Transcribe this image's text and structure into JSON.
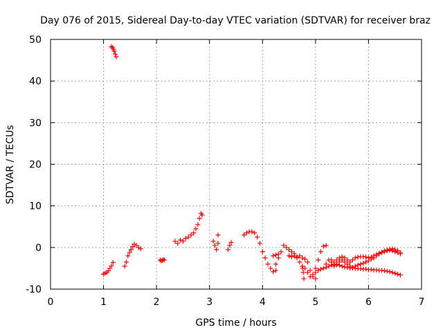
{
  "chart_data": {
    "type": "scatter",
    "title": "Day 076 of 2015, Sidereal Day-to-day VTEC variation (SDTVAR) for receiver braz",
    "xlabel": "GPS time / hours",
    "ylabel": "SDTVAR / TECUs",
    "xlim": [
      0,
      7
    ],
    "ylim": [
      -10,
      50
    ],
    "x_ticks": [
      0,
      1,
      2,
      3,
      4,
      5,
      6,
      7
    ],
    "y_ticks": [
      -10,
      0,
      10,
      20,
      30,
      40,
      50
    ],
    "grid": true,
    "marker": "+",
    "marker_color": "#ff0000",
    "series": [
      {
        "name": "s1",
        "x": [
          1.15,
          1.17,
          1.19,
          1.2,
          1.22,
          1.24
        ],
        "y": [
          48.3,
          48.0,
          47.6,
          47.2,
          46.5,
          45.8
        ]
      },
      {
        "name": "s2",
        "x": [
          1.0,
          1.03,
          1.06,
          1.09,
          1.12,
          1.15,
          1.18
        ],
        "y": [
          -6.4,
          -6.2,
          -6.0,
          -5.6,
          -5.0,
          -4.4,
          -3.6
        ]
      },
      {
        "name": "s3",
        "x": [
          1.4,
          1.43,
          1.46,
          1.49,
          1.52,
          1.55,
          1.58,
          1.62,
          1.66,
          1.7
        ],
        "y": [
          -4.5,
          -3.5,
          -2.0,
          -1.2,
          -0.5,
          0.2,
          0.8,
          0.5,
          0.0,
          -0.3
        ]
      },
      {
        "name": "s4",
        "x": [
          2.07,
          2.09,
          2.11,
          2.13,
          2.15
        ],
        "y": [
          -3.0,
          -3.2,
          -3.1,
          -2.9,
          -3.0
        ]
      },
      {
        "name": "s5",
        "x": [
          2.35,
          2.4,
          2.45,
          2.5,
          2.55,
          2.6,
          2.65,
          2.7,
          2.74,
          2.78,
          2.81,
          2.84,
          2.86
        ],
        "y": [
          1.5,
          1.0,
          1.8,
          1.5,
          2.2,
          2.5,
          3.0,
          3.5,
          4.5,
          5.5,
          7.0,
          8.2,
          7.8
        ]
      },
      {
        "name": "s6",
        "x": [
          3.07,
          3.1,
          3.13,
          3.16
        ],
        "y": [
          1.5,
          0.5,
          -0.5,
          1.0
        ]
      },
      {
        "name": "s7",
        "x": [
          3.16
        ],
        "y": [
          3.0
        ]
      },
      {
        "name": "s8",
        "x": [
          3.35,
          3.38,
          3.41
        ],
        "y": [
          -0.5,
          0.5,
          1.2
        ]
      },
      {
        "name": "s9",
        "x": [
          3.65,
          3.7,
          3.75,
          3.8,
          3.85,
          3.9,
          3.95,
          4.0,
          4.05,
          4.1,
          4.15,
          4.2,
          4.25
        ],
        "y": [
          3.0,
          3.5,
          3.8,
          3.8,
          3.5,
          2.5,
          1.0,
          -1.0,
          -2.5,
          -4.0,
          -5.0,
          -5.8,
          -5.5
        ]
      },
      {
        "name": "s10",
        "x": [
          4.25,
          4.3,
          4.35,
          4.4,
          4.45,
          4.5,
          4.55,
          4.6,
          4.65,
          4.7,
          4.75,
          4.8,
          4.85,
          4.9,
          4.95,
          5.0,
          5.05,
          5.1,
          5.15,
          5.2
        ],
        "y": [
          -4.0,
          -2.5,
          -1.0,
          0.5,
          0.0,
          -0.5,
          -1.0,
          -1.5,
          -2.5,
          -3.5,
          -4.5,
          -5.0,
          -6.0,
          -7.0,
          -6.5,
          -5.0,
          -3.0,
          -1.0,
          0.3,
          0.5
        ]
      },
      {
        "name": "s11",
        "x": [
          4.2,
          4.25,
          4.3
        ],
        "y": [
          -2.0,
          -1.8,
          -1.6
        ]
      },
      {
        "name": "s12",
        "x": [
          4.5,
          4.55,
          4.6,
          4.65,
          4.7,
          4.75,
          4.8,
          4.85,
          4.9,
          4.95,
          5.0
        ],
        "y": [
          -2.0,
          -2.2,
          -2.0,
          -2.3,
          -2.0,
          -2.5,
          -2.8,
          -3.5,
          -5.5,
          -7.0,
          -7.5
        ]
      },
      {
        "name": "s13",
        "x": [
          4.76,
          4.77,
          4.78
        ],
        "y": [
          -5.0,
          -6.0,
          -7.5
        ]
      },
      {
        "name": "s14",
        "x": [
          5.0,
          5.05,
          5.1,
          5.15,
          5.2,
          5.25,
          5.3,
          5.35,
          5.4,
          5.45,
          5.5,
          5.55,
          5.6,
          5.65,
          5.7,
          5.75,
          5.8,
          5.85,
          5.9,
          5.95,
          6.0,
          6.05,
          6.1,
          6.15,
          6.2,
          6.25,
          6.3,
          6.35,
          6.4,
          6.45,
          6.5,
          6.55,
          6.6
        ],
        "y": [
          -6.0,
          -5.5,
          -5.2,
          -5.0,
          -4.8,
          -4.5,
          -4.2,
          -4.0,
          -4.2,
          -4.3,
          -4.5,
          -4.7,
          -4.8,
          -4.9,
          -5.0,
          -5.0,
          -5.1,
          -5.1,
          -5.2,
          -5.2,
          -5.3,
          -5.3,
          -5.4,
          -5.4,
          -5.5,
          -5.5,
          -5.6,
          -5.7,
          -5.8,
          -6.0,
          -6.2,
          -6.4,
          -6.6
        ]
      },
      {
        "name": "s15",
        "x": [
          5.2,
          5.25,
          5.3,
          5.35,
          5.4,
          5.45,
          5.5,
          5.55,
          5.6,
          5.65,
          5.7,
          5.75,
          5.8,
          5.85,
          5.9,
          5.95,
          6.0,
          6.05,
          6.1,
          6.15,
          6.2,
          6.25,
          6.3,
          6.35,
          6.4,
          6.45,
          6.5,
          6.55,
          6.6
        ],
        "y": [
          -4.0,
          -3.0,
          -3.5,
          -4.5,
          -4.0,
          -3.5,
          -3.0,
          -3.5,
          -4.0,
          -4.5,
          -4.8,
          -4.5,
          -4.2,
          -4.0,
          -3.8,
          -3.5,
          -3.2,
          -2.8,
          -2.5,
          -2.0,
          -1.5,
          -1.2,
          -1.0,
          -0.8,
          -0.6,
          -0.8,
          -1.0,
          -1.2,
          -1.5
        ]
      },
      {
        "name": "s16",
        "x": [
          5.3,
          5.35,
          5.4,
          5.45,
          5.5,
          5.55,
          5.6,
          5.65,
          5.7,
          5.75,
          5.8,
          5.85,
          5.9,
          5.95,
          6.0,
          6.05,
          6.1,
          6.15,
          6.2,
          6.25,
          6.3,
          6.35,
          6.4,
          6.45,
          6.5,
          6.55,
          6.6
        ],
        "y": [
          -3.0,
          -3.5,
          -3.0,
          -2.5,
          -2.2,
          -2.5,
          -3.0,
          -3.5,
          -3.0,
          -2.5,
          -2.3,
          -2.2,
          -2.2,
          -2.3,
          -2.5,
          -2.3,
          -2.0,
          -1.7,
          -1.4,
          -1.1,
          -0.8,
          -0.6,
          -0.4,
          -0.3,
          -0.5,
          -0.8,
          -1.2
        ]
      }
    ]
  }
}
